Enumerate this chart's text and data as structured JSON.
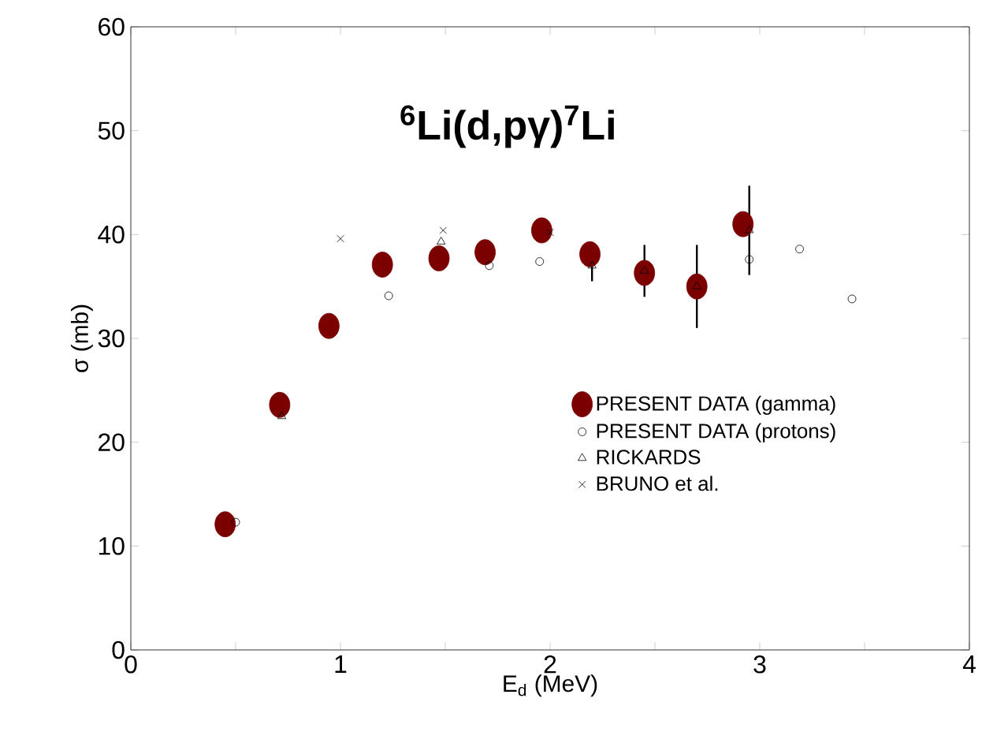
{
  "chart_data": {
    "type": "scatter",
    "title": "**$^{6}$Li(d,pγ)$^{7}$Li**",
    "xlabel": "E$_{d}$ (MeV)",
    "ylabel": "σ (mb)",
    "xlim": [
      0,
      4
    ],
    "ylim": [
      0,
      60
    ],
    "xticks": [
      0,
      {
        "value": 0.5,
        "label": null
      },
      1,
      {
        "value": 1.5,
        "label": null
      },
      2,
      {
        "value": 2.5,
        "label": null
      },
      3,
      {
        "value": 3.5,
        "label": null
      },
      4
    ],
    "yticks": [
      0,
      10,
      20,
      30,
      40,
      50,
      60
    ],
    "legend": "right",
    "grid": false,
    "series": [
      {
        "name": "PRESENT DATA (gamma)",
        "color": "#7b0000",
        "marker": "circle",
        "x": [
          0.45,
          0.71,
          0.945,
          1.2,
          1.47,
          1.69,
          1.96,
          2.19,
          2.45,
          2.7,
          2.92
        ],
        "values": [
          12.1,
          23.6,
          31.2,
          37.1,
          37.7,
          38.3,
          40.4,
          38.1,
          36.3,
          35.0,
          41.0
        ]
      },
      {
        "name": "PRESENT DATA (protons)",
        "color": "#000000",
        "marker": "circle",
        "x": [
          0.5,
          1.23,
          1.71,
          1.95,
          2.95,
          3.19,
          3.44
        ],
        "values": [
          12.3,
          34.1,
          37.0,
          37.4,
          37.6,
          38.6,
          33.8
        ]
      },
      {
        "name": "RICKARDS",
        "color": "#000000",
        "marker": "triangle",
        "x": [
          0.72,
          1.48,
          2.2,
          2.45,
          2.7,
          2.95
        ],
        "values": [
          22.5,
          39.3,
          37.0,
          36.5,
          35.0,
          40.4
        ],
        "errors": [
          null,
          null,
          1.5,
          2.5,
          4,
          4.3
        ]
      },
      {
        "name": "BRUNO et al.",
        "color": "#000000",
        "marker": "cross",
        "x": [
          1.0,
          1.49,
          2.0
        ],
        "values": [
          39.6,
          40.4,
          40.2
        ]
      }
    ]
  }
}
